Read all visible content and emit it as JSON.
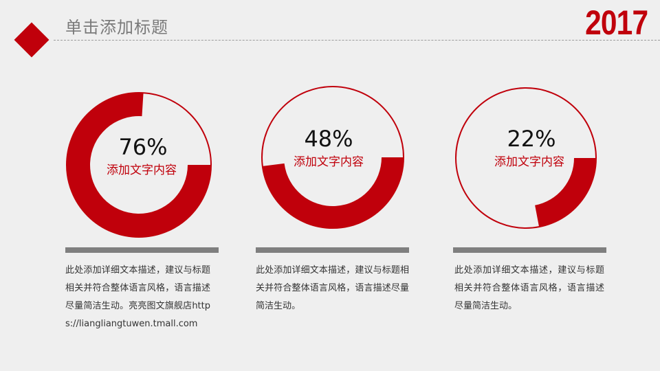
{
  "header": {
    "title": "单击添加标题",
    "year": "2017"
  },
  "colors": {
    "accent": "#c0000b",
    "bar": "#7f7f7f",
    "text": "#333333"
  },
  "chart_data": [
    {
      "type": "pie",
      "values": [
        76
      ],
      "unit": "%",
      "label": "添加文字内容"
    },
    {
      "type": "pie",
      "values": [
        48
      ],
      "unit": "%",
      "label": "添加文字内容"
    },
    {
      "type": "pie",
      "values": [
        22
      ],
      "unit": "%",
      "label": "添加文字内容"
    }
  ],
  "panels": [
    {
      "percent": "76%",
      "caption": "添加文字内容",
      "description": "此处添加详细文本描述，建议与标题相关并符合整体语言风格，语言描述尽量简洁生动。亮亮图文旗舰店https://liangliangtuwen.tmall.com"
    },
    {
      "percent": "48%",
      "caption": "添加文字内容",
      "description": "此处添加详细文本描述，建议与标题相关并符合整体语言风格，语言描述尽量简洁生动。"
    },
    {
      "percent": "22%",
      "caption": "添加文字内容",
      "description": "此处添加详细文本描述，建议与标题相关并符合整体语言风格，语言描述尽量简洁生动。"
    }
  ]
}
